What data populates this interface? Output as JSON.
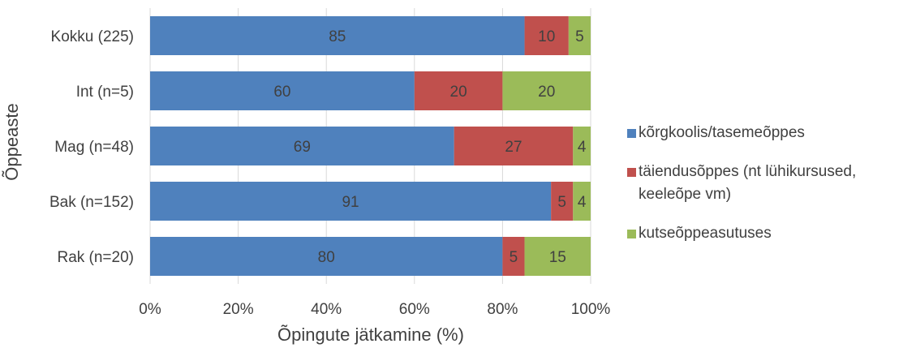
{
  "chart_data": {
    "type": "bar",
    "orientation": "horizontal",
    "stacked": "percent",
    "xlabel": "Õpingute jätkamine (%)",
    "ylabel": "Õppeaste",
    "xlim": [
      0,
      100
    ],
    "x_ticks": [
      "0%",
      "20%",
      "40%",
      "60%",
      "80%",
      "100%"
    ],
    "grid": "vertical",
    "legend_position": "right",
    "categories": [
      "Kokku (225)",
      "Int (n=5)",
      "Mag (n=48)",
      "Bak (n=152)",
      "Rak (n=20)"
    ],
    "series": [
      {
        "name": "kõrgkoolis/tasemeõppes",
        "color": "#4f81bd",
        "values": [
          85,
          60,
          69,
          91,
          80
        ]
      },
      {
        "name": "täiendusõppes (nt lühikursused, keeleõpe vm)",
        "color": "#c0504d",
        "values": [
          10,
          20,
          27,
          5,
          5
        ]
      },
      {
        "name": "kutseõppeasutuses",
        "color": "#9bbb59",
        "values": [
          5,
          20,
          4,
          4,
          15
        ]
      }
    ]
  }
}
